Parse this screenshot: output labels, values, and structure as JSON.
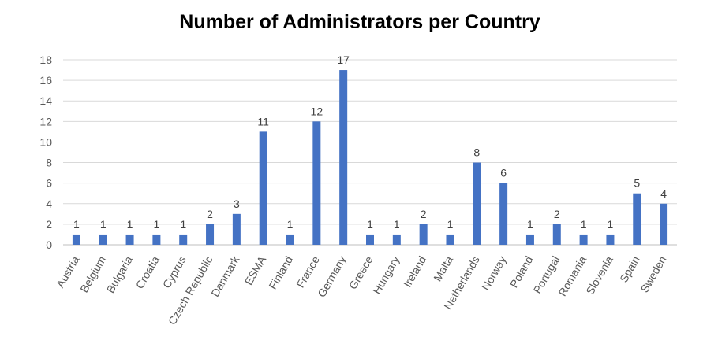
{
  "chart_data": {
    "type": "bar",
    "title": "Number of Administrators per Country",
    "categories": [
      "Austria",
      "Belgium",
      "Bulgaria",
      "Croatia",
      "Cyprus",
      "Czech Republic",
      "Danmark",
      "ESMA",
      "Finland",
      "France",
      "Germany",
      "Greece",
      "Hungary",
      "Ireland",
      "Malta",
      "Netherlands",
      "Norway",
      "Poland",
      "Portugal",
      "Romania",
      "Slovenia",
      "Spain",
      "Sweden"
    ],
    "values": [
      1,
      1,
      1,
      1,
      1,
      2,
      3,
      11,
      1,
      12,
      17,
      1,
      1,
      2,
      1,
      8,
      6,
      1,
      2,
      1,
      1,
      5,
      4
    ],
    "xlabel": "",
    "ylabel": "",
    "ylim": [
      0,
      18
    ],
    "yticks": [
      0,
      2,
      4,
      6,
      8,
      10,
      12,
      14,
      16,
      18
    ],
    "grid": true,
    "data_labels": true,
    "bar_color": "#4472C4"
  }
}
